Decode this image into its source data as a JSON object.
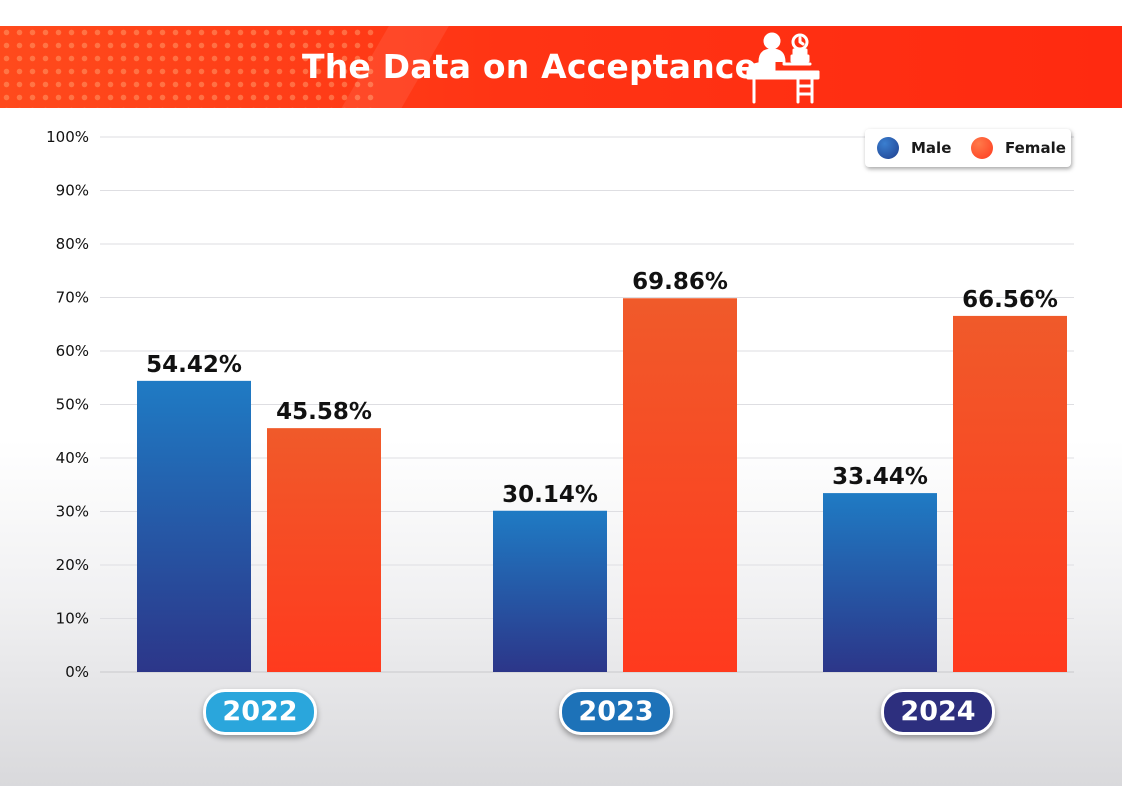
{
  "header": {
    "title": "The Data on Acceptance",
    "icon": "teacher-desk-icon"
  },
  "legend": {
    "items": [
      {
        "label": "Male",
        "color": "#1f4fa8"
      },
      {
        "label": "Female",
        "color": "#ff4a22"
      }
    ]
  },
  "chart_data": {
    "type": "bar",
    "title": "The Data on Acceptance",
    "categories": [
      "2022",
      "2023",
      "2024"
    ],
    "series": [
      {
        "name": "Male",
        "values": [
          54.42,
          30.14,
          33.44
        ],
        "labels": [
          "54.42%",
          "30.14%",
          "33.44%"
        ],
        "color_top": "#1f7bc4",
        "color_bottom": "#2c3689"
      },
      {
        "name": "Female",
        "values": [
          45.58,
          69.86,
          66.56
        ],
        "labels": [
          "45.58%",
          "69.86%",
          "66.56%"
        ],
        "color_top": "#f05a2a",
        "color_bottom": "#ff3a1e"
      }
    ],
    "y_ticks": [
      "0%",
      "10%",
      "20%",
      "30%",
      "40%",
      "50%",
      "60%",
      "70%",
      "80%",
      "90%",
      "100%"
    ],
    "ylim": [
      0,
      100
    ],
    "grid": true,
    "legend_position": "top-right",
    "category_colors": [
      "#2aa6dc",
      "#1d72b8",
      "#2d2f7e"
    ]
  }
}
